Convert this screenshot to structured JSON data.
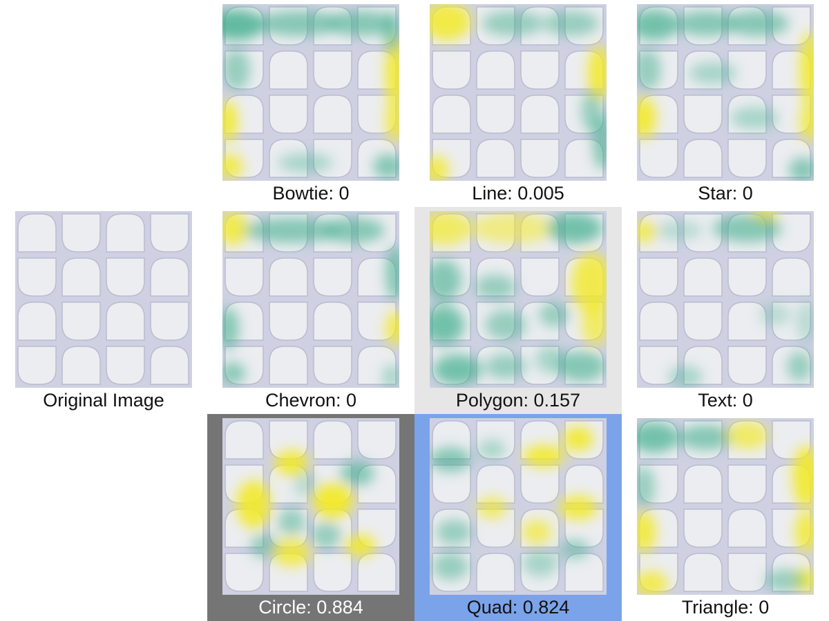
{
  "colors": {
    "highlight_gray": "#e6e6e6",
    "highlight_dark": "#757575",
    "highlight_blue": "#7ba3ea",
    "heat_teal": "#3fae8c",
    "heat_yellow": "#f2ea28"
  },
  "panels": {
    "original": {
      "caption": "Original Image"
    },
    "bowtie": {
      "caption": "Bowtie: 0"
    },
    "line": {
      "caption": "Line: 0.005"
    },
    "star": {
      "caption": "Star: 0"
    },
    "chevron": {
      "caption": "Chevron: 0"
    },
    "polygon": {
      "caption": "Polygon: 0.157"
    },
    "text": {
      "caption": "Text: 0"
    },
    "circle": {
      "caption": "Circle: 0.884"
    },
    "quad": {
      "caption": "Quad: 0.824"
    },
    "triangle": {
      "caption": "Triangle: 0"
    }
  }
}
